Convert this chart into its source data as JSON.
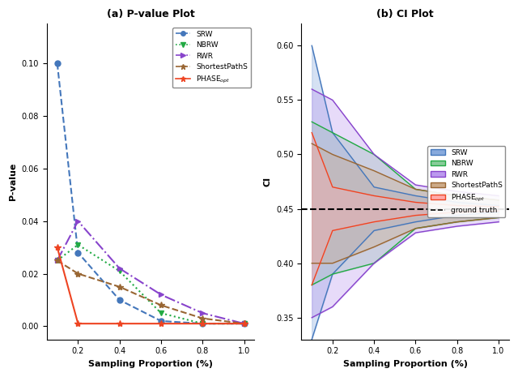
{
  "title_left": "(a) P-value Plot",
  "title_right": "(b) CI Plot",
  "xlabel": "Sampling Proportion (%)",
  "ylabel_left": "P-value",
  "ylabel_right": "CI",
  "x_ticks": [
    0.2,
    0.4,
    0.6,
    0.8,
    1.0
  ],
  "ground_truth": 0.45,
  "pvalue": {
    "x": [
      0.1,
      0.2,
      0.4,
      0.6,
      0.8,
      1.0
    ],
    "SRW": [
      0.1,
      0.028,
      0.01,
      0.002,
      0.001,
      0.001
    ],
    "NBRW": [
      0.025,
      0.031,
      0.021,
      0.005,
      0.001,
      0.001
    ],
    "RWR": [
      0.025,
      0.04,
      0.022,
      0.012,
      0.005,
      0.001
    ],
    "ShortestPathS": [
      0.025,
      0.02,
      0.015,
      0.008,
      0.003,
      0.001
    ],
    "PHASEopt": [
      0.03,
      0.001,
      0.001,
      0.001,
      0.001,
      0.001
    ]
  },
  "ci": {
    "x": [
      0.1,
      0.2,
      0.4,
      0.6,
      0.8,
      1.0
    ],
    "SRW_upper": [
      0.6,
      0.52,
      0.47,
      0.462,
      0.456,
      0.453
    ],
    "SRW_lower": [
      0.33,
      0.39,
      0.43,
      0.438,
      0.444,
      0.447
    ],
    "NBRW_upper": [
      0.53,
      0.52,
      0.5,
      0.468,
      0.462,
      0.458
    ],
    "NBRW_lower": [
      0.38,
      0.39,
      0.4,
      0.432,
      0.438,
      0.442
    ],
    "RWR_upper": [
      0.56,
      0.55,
      0.5,
      0.472,
      0.466,
      0.462
    ],
    "RWR_lower": [
      0.35,
      0.36,
      0.4,
      0.428,
      0.434,
      0.438
    ],
    "ShortestPathS_upper": [
      0.51,
      0.5,
      0.485,
      0.468,
      0.462,
      0.458
    ],
    "ShortestPathS_lower": [
      0.4,
      0.4,
      0.415,
      0.432,
      0.438,
      0.442
    ],
    "PHASEopt_upper": [
      0.52,
      0.47,
      0.462,
      0.456,
      0.453,
      0.452
    ],
    "PHASEopt_lower": [
      0.38,
      0.43,
      0.438,
      0.444,
      0.447,
      0.448
    ],
    "SRW_mid": [
      0.465,
      0.455,
      0.45,
      0.45,
      0.45,
      0.45
    ],
    "NBRW_mid": [
      0.455,
      0.455,
      0.454,
      0.45,
      0.45,
      0.45
    ],
    "RWR_mid": [
      0.455,
      0.455,
      0.45,
      0.45,
      0.45,
      0.45
    ],
    "ShortestPathS_mid": [
      0.455,
      0.45,
      0.45,
      0.45,
      0.45,
      0.45
    ],
    "PHASEopt_mid": [
      0.45,
      0.45,
      0.45,
      0.45,
      0.45,
      0.45
    ]
  },
  "colors": {
    "SRW": "#4477bb",
    "NBRW": "#22aa44",
    "RWR": "#8844cc",
    "ShortestPathS": "#996633",
    "PHASEopt": "#ee4422"
  },
  "fill_colors": {
    "SRW": "#88aadd",
    "NBRW": "#88cc99",
    "RWR": "#bb99ee",
    "ShortestPathS": "#ccaa88",
    "PHASEopt": "#ffaaaa"
  }
}
